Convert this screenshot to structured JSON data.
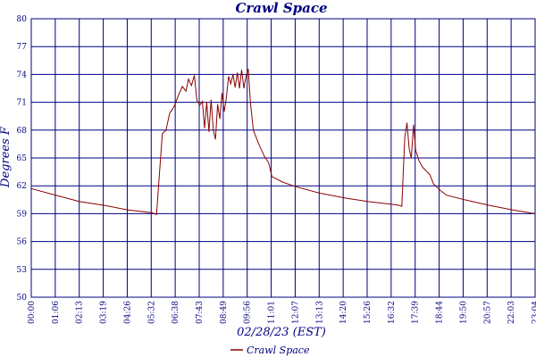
{
  "chart_data": {
    "type": "line",
    "title": "Crawl Space",
    "xlabel": "02/28/23 (EST)",
    "ylabel": "Degrees F",
    "ylim": [
      50,
      80
    ],
    "yticks": [
      50,
      53,
      56,
      59,
      62,
      65,
      68,
      71,
      74,
      77,
      80
    ],
    "ytick_labels": [
      "50",
      "53",
      "56",
      "59",
      "62",
      "65",
      "68",
      "71",
      "74",
      "77",
      "80"
    ],
    "xticks": [
      "00:00",
      "01:06",
      "02:13",
      "03:19",
      "04:26",
      "05:32",
      "06:38",
      "07:43",
      "08:49",
      "09:56",
      "11:01",
      "12:07",
      "13:13",
      "14:20",
      "15:26",
      "16:32",
      "17:39",
      "18:44",
      "19:50",
      "20:57",
      "22:03",
      "23:04"
    ],
    "xlim": [
      "00:00",
      "23:04"
    ],
    "grid": true,
    "legend": "bottom-center",
    "series_color": "#8b0000",
    "grid_color": "#000080",
    "series": [
      {
        "name": "Crawl Space",
        "points": [
          [
            "00:00",
            61.7
          ],
          [
            "01:06",
            61.0
          ],
          [
            "02:13",
            60.3
          ],
          [
            "03:19",
            59.9
          ],
          [
            "04:26",
            59.4
          ],
          [
            "05:32",
            59.1
          ],
          [
            "05:44",
            58.9
          ],
          [
            "06:00",
            67.6
          ],
          [
            "06:10",
            68.0
          ],
          [
            "06:20",
            69.8
          ],
          [
            "06:32",
            70.5
          ],
          [
            "06:45",
            71.8
          ],
          [
            "06:55",
            72.7
          ],
          [
            "07:05",
            72.2
          ],
          [
            "07:12",
            73.5
          ],
          [
            "07:20",
            72.8
          ],
          [
            "07:28",
            73.9
          ],
          [
            "07:35",
            71.2
          ],
          [
            "07:43",
            70.7
          ],
          [
            "07:50",
            71.1
          ],
          [
            "07:56",
            68.2
          ],
          [
            "08:02",
            71.0
          ],
          [
            "08:08",
            67.8
          ],
          [
            "08:14",
            71.3
          ],
          [
            "08:20",
            68.0
          ],
          [
            "08:26",
            67.0
          ],
          [
            "08:32",
            70.8
          ],
          [
            "08:38",
            69.2
          ],
          [
            "08:44",
            72.0
          ],
          [
            "08:50",
            70.0
          ],
          [
            "08:56",
            71.5
          ],
          [
            "09:02",
            73.8
          ],
          [
            "09:08",
            73.0
          ],
          [
            "09:14",
            74.0
          ],
          [
            "09:20",
            72.6
          ],
          [
            "09:26",
            74.2
          ],
          [
            "09:32",
            72.5
          ],
          [
            "09:38",
            74.5
          ],
          [
            "09:44",
            72.5
          ],
          [
            "09:50",
            73.8
          ],
          [
            "09:56",
            74.6
          ],
          [
            "10:02",
            71.0
          ],
          [
            "10:10",
            68.0
          ],
          [
            "10:25",
            66.5
          ],
          [
            "10:40",
            65.2
          ],
          [
            "10:52",
            64.5
          ],
          [
            "10:58",
            63.5
          ],
          [
            "11:01",
            63.0
          ],
          [
            "11:30",
            62.4
          ],
          [
            "12:07",
            61.9
          ],
          [
            "13:13",
            61.2
          ],
          [
            "14:20",
            60.7
          ],
          [
            "15:26",
            60.3
          ],
          [
            "16:32",
            60.0
          ],
          [
            "16:50",
            59.9
          ],
          [
            "16:58",
            59.8
          ],
          [
            "17:06",
            67.2
          ],
          [
            "17:12",
            68.8
          ],
          [
            "17:18",
            66.0
          ],
          [
            "17:24",
            65.0
          ],
          [
            "17:30",
            68.6
          ],
          [
            "17:36",
            65.8
          ],
          [
            "17:45",
            64.7
          ],
          [
            "17:55",
            64.0
          ],
          [
            "18:05",
            63.6
          ],
          [
            "18:15",
            63.2
          ],
          [
            "18:25",
            62.2
          ],
          [
            "18:44",
            61.5
          ],
          [
            "19:00",
            61.0
          ],
          [
            "19:50",
            60.5
          ],
          [
            "20:57",
            59.9
          ],
          [
            "22:03",
            59.4
          ],
          [
            "23:04",
            59.0
          ]
        ]
      }
    ]
  }
}
